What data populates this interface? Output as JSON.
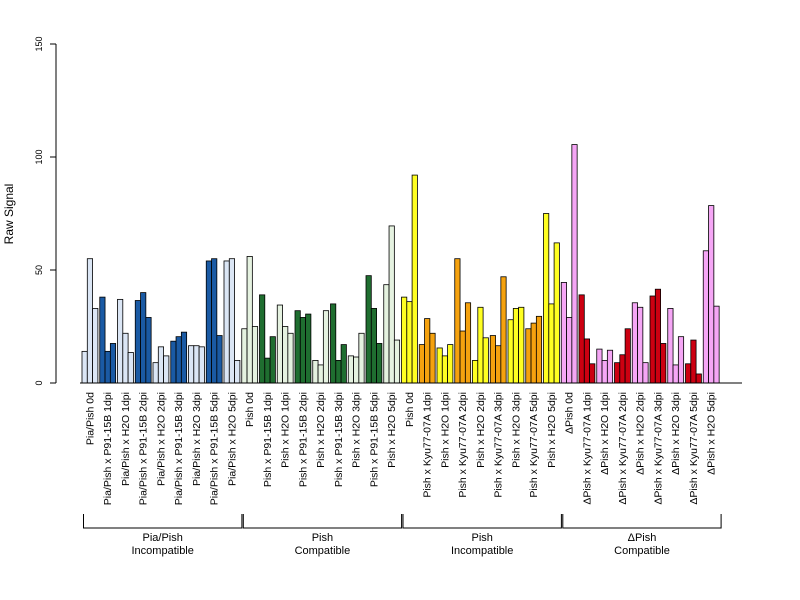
{
  "chart_data": {
    "type": "bar",
    "ylabel": "Raw Signal",
    "ylim": [
      0,
      150
    ],
    "yticks": [
      0,
      50,
      100,
      150
    ],
    "bars_per_category": 3,
    "categories": [
      "Pia/Pish 0d",
      "Pia/Pish x P91-15B 1dpi",
      "Pia/Pish x H2O 1dpi",
      "Pia/Pish x P91-15B 2dpi",
      "Pia/Pish x H2O 2dpi",
      "Pia/Pish x P91-15B 3dpi",
      "Pia/Pish x H2O 3dpi",
      "Pia/Pish x P91-15B 5dpi",
      "Pia/Pish x H2O 5dpi",
      "Pish 0d",
      "Pish x P91-15B 1dpi",
      "Pish x H2O 1dpi",
      "Pish x P91-15B 2dpi",
      "Pish x H2O 2dpi",
      "Pish x P91-15B 3dpi",
      "Pish x H2O 3dpi",
      "Pish x P91-15B 5dpi",
      "Pish x H2O 5dpi",
      "Pish 0d",
      "Pish x Kyu77-07A 1dpi",
      "Pish x H2O 1dpi",
      "Pish x Kyu77-07A 2dpi",
      "Pish x H2O 2dpi",
      "Pish x Kyu77-07A 3dpi",
      "Pish x H2O 3dpi",
      "Pish x Kyu77-07A 5dpi",
      "Pish x H2O 5dpi",
      "ΔPish 0d",
      "ΔPish x Kyu77-07A 1dpi",
      "ΔPish x H2O 1dpi",
      "ΔPish x Kyu77-07A 2dpi",
      "ΔPish x H2O 2dpi",
      "ΔPish x Kyu77-07A 3dpi",
      "ΔPish x H2O 3dpi",
      "ΔPish x Kyu77-07A 5dpi",
      "ΔPish x H2O 5dpi"
    ],
    "values": [
      [
        14,
        55,
        33
      ],
      [
        38,
        14,
        17.5
      ],
      [
        37,
        22,
        13.5
      ],
      [
        36.5,
        40,
        29
      ],
      [
        9,
        16,
        12
      ],
      [
        18.5,
        20.5,
        22.5
      ],
      [
        16.5,
        16.5,
        16
      ],
      [
        54,
        55,
        21
      ],
      [
        54,
        55,
        10
      ],
      [
        24,
        56,
        25
      ],
      [
        39,
        11,
        20.5
      ],
      [
        34.5,
        25,
        22
      ],
      [
        32,
        29,
        30.5
      ],
      [
        10,
        8,
        32
      ],
      [
        35,
        10,
        17
      ],
      [
        12,
        11.5,
        22
      ],
      [
        47.5,
        33,
        17.5
      ],
      [
        43.5,
        69.5,
        19
      ],
      [
        38,
        36,
        92
      ],
      [
        17,
        28.5,
        22
      ],
      [
        15.5,
        12,
        17
      ],
      [
        55,
        23,
        35.5
      ],
      [
        10,
        33.5,
        20
      ],
      [
        21,
        16.5,
        47
      ],
      [
        28,
        33,
        33.5
      ],
      [
        24,
        26.5,
        29.5
      ],
      [
        75,
        35,
        62
      ],
      [
        44.5,
        29,
        105.5
      ],
      [
        39,
        19.5,
        8.5
      ],
      [
        15,
        10,
        14.5
      ],
      [
        9,
        12.5,
        24
      ],
      [
        35.5,
        33.5,
        9
      ],
      [
        38.5,
        41.5,
        17.5
      ],
      [
        33,
        8,
        20.5
      ],
      [
        8.5,
        19,
        4
      ],
      [
        58.5,
        78.5,
        34
      ]
    ],
    "colors": [
      "#dbe6f5",
      "#1a5aa4",
      "#dbe6f5",
      "#1a5aa4",
      "#dbe6f5",
      "#1a5aa4",
      "#dbe6f5",
      "#1a5aa4",
      "#dbe6f5",
      "#e5f2e0",
      "#1f6e30",
      "#e5f2e0",
      "#1f6e30",
      "#e5f2e0",
      "#1f6e30",
      "#e5f2e0",
      "#1f6e30",
      "#e5f2e0",
      "#ffff22",
      "#f5a20f",
      "#ffff22",
      "#f5a20f",
      "#ffff22",
      "#f5a20f",
      "#ffff22",
      "#f5a20f",
      "#ffff22",
      "#f5a6f5",
      "#cc0011",
      "#f5a6f5",
      "#cc0011",
      "#f5a6f5",
      "#cc0011",
      "#f5a6f5",
      "#cc0011",
      "#f5a6f5"
    ],
    "groups": [
      {
        "line1": "Pia/Pish",
        "line2": "Incompatible",
        "start": 0,
        "end": 8
      },
      {
        "line1": "Pish",
        "line2": "Compatible",
        "start": 9,
        "end": 17
      },
      {
        "line1": "Pish",
        "line2": "Incompatible",
        "start": 18,
        "end": 26
      },
      {
        "line1": "ΔPish",
        "line2": "Compatible",
        "start": 27,
        "end": 35
      }
    ]
  }
}
